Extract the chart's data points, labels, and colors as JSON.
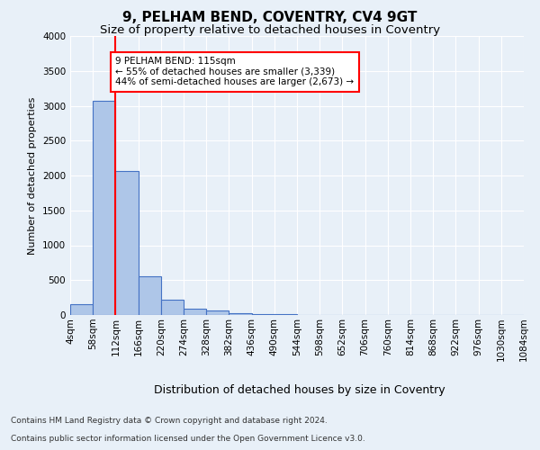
{
  "title": "9, PELHAM BEND, COVENTRY, CV4 9GT",
  "subtitle": "Size of property relative to detached houses in Coventry",
  "xlabel": "Distribution of detached houses by size in Coventry",
  "ylabel": "Number of detached properties",
  "bin_edges": [
    4,
    58,
    112,
    166,
    220,
    274,
    328,
    382,
    436,
    490,
    544,
    598,
    652,
    706,
    760,
    814,
    868,
    922,
    976,
    1030,
    1084
  ],
  "bar_heights": [
    150,
    3070,
    2060,
    560,
    220,
    90,
    60,
    30,
    15,
    8,
    5,
    4,
    3,
    3,
    2,
    2,
    1,
    1,
    1,
    1
  ],
  "bar_color": "#aec6e8",
  "bar_edge_color": "#4472c4",
  "property_line_x": 112,
  "property_line_color": "red",
  "annotation_text": "9 PELHAM BEND: 115sqm\n← 55% of detached houses are smaller (3,339)\n44% of semi-detached houses are larger (2,673) →",
  "annotation_box_color": "red",
  "ylim": [
    0,
    4000
  ],
  "yticks": [
    0,
    500,
    1000,
    1500,
    2000,
    2500,
    3000,
    3500,
    4000
  ],
  "background_color": "#e8f0f8",
  "plot_background_color": "#e8f0f8",
  "grid_color": "white",
  "footer_line1": "Contains HM Land Registry data © Crown copyright and database right 2024.",
  "footer_line2": "Contains public sector information licensed under the Open Government Licence v3.0.",
  "title_fontsize": 11,
  "subtitle_fontsize": 9.5,
  "xlabel_fontsize": 9,
  "ylabel_fontsize": 8,
  "tick_fontsize": 7.5,
  "footer_fontsize": 6.5
}
